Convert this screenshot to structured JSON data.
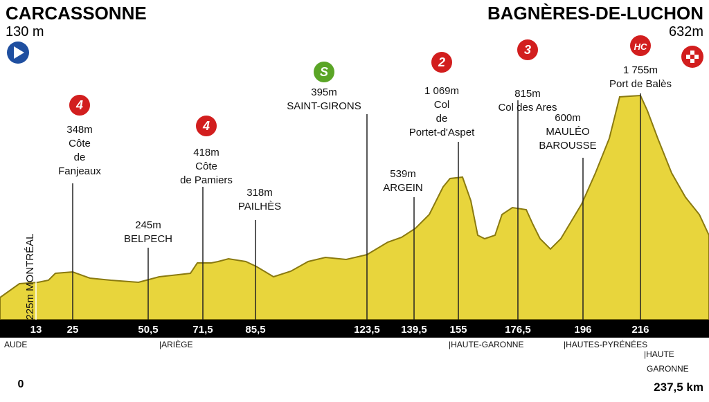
{
  "start": {
    "name": "CARCASSONNE",
    "altitude": "130 m",
    "km": "0"
  },
  "finish": {
    "name": "BAGNÈRES-DE-LUCHON",
    "altitude": "632m",
    "km": "237,5 km"
  },
  "places": [
    {
      "lines": [
        "225m  MONTRÉAL"
      ]
    },
    {
      "category": "4",
      "lines": [
        "348m",
        "Côte",
        "de",
        "Fanjeaux"
      ]
    },
    {
      "lines": [
        "245m",
        "BELPECH"
      ]
    },
    {
      "category": "4",
      "lines": [
        "418m",
        "Côte",
        "de Pamiers"
      ]
    },
    {
      "lines": [
        "318m",
        "PAILHÈS"
      ]
    },
    {
      "category": "S",
      "lines": [
        "395m",
        "SAINT-GIRONS"
      ]
    },
    {
      "lines": [
        "539m",
        "ARGEIN"
      ]
    },
    {
      "category": "2",
      "lines": [
        "1 069m",
        "Col",
        "de",
        "Portet-d'Aspet"
      ]
    },
    {
      "category": "3",
      "lines": [
        "815m",
        "Col des Ares"
      ]
    },
    {
      "lines": [
        "600m",
        "MAULÉO",
        "BAROUSSE"
      ]
    },
    {
      "category": "HC",
      "lines": [
        "1 755m",
        "Port de Balès"
      ]
    }
  ],
  "km_markers": [
    "13",
    "25",
    "50,5",
    "71,5",
    "85,5",
    "123,5",
    "139,5",
    "155",
    "176,5",
    "196",
    "216"
  ],
  "regions": [
    {
      "lines": [
        "AUDE"
      ]
    },
    {
      "lines": [
        "|ARIÈGE"
      ]
    },
    {
      "lines": [
        "|HAUTE-GARONNE"
      ]
    },
    {
      "lines": [
        "|HAUTES-PYRÉNÉES"
      ]
    },
    {
      "lines": [
        "|HAUTE",
        "GARONNE"
      ]
    }
  ]
}
